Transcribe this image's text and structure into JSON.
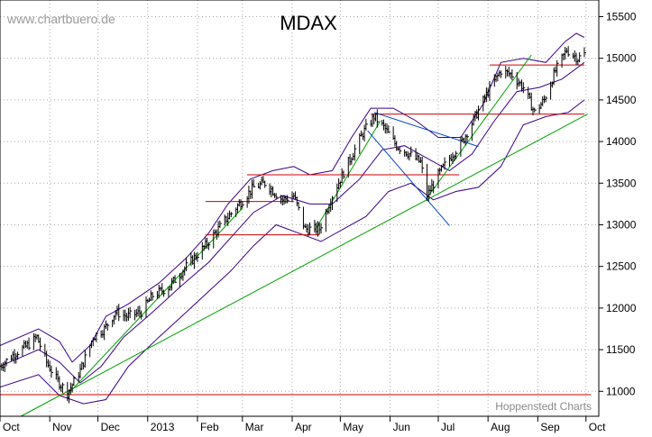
{
  "watermark": "www.chartbuero.de",
  "credit": "Hoppenstedt Charts",
  "chart_data": {
    "type": "candlestick",
    "title": "MDAX",
    "xlabel": "",
    "ylabel": "",
    "ylim": [
      10700,
      15700
    ],
    "y_axis_position": "right",
    "yticks": [
      11000,
      11500,
      12000,
      12500,
      13000,
      13500,
      14000,
      14500,
      15000,
      15500
    ],
    "month_labels": [
      "Oct",
      "Nov",
      "Dec",
      "2013",
      "Feb",
      "Mar",
      "Apr",
      "May",
      "Jun",
      "Jul",
      "Aug",
      "Sep",
      "Oct"
    ],
    "grid": true,
    "legend": "none",
    "price_path": [
      [
        "2012-10-01",
        11300
      ],
      [
        "2012-10-10",
        11450
      ],
      [
        "2012-10-18",
        11550
      ],
      [
        "2012-10-24",
        11650
      ],
      [
        "2012-10-30",
        11350
      ],
      [
        "2012-11-05",
        11150
      ],
      [
        "2012-11-12",
        10980
      ],
      [
        "2012-11-20",
        11250
      ],
      [
        "2012-11-28",
        11650
      ],
      [
        "2012-12-05",
        11750
      ],
      [
        "2012-12-12",
        11950
      ],
      [
        "2012-12-19",
        11900
      ],
      [
        "2012-12-28",
        11950
      ],
      [
        "2013-01-04",
        12150
      ],
      [
        "2013-01-14",
        12250
      ],
      [
        "2013-01-25",
        12500
      ],
      [
        "2013-02-06",
        12750
      ],
      [
        "2013-02-18",
        13050
      ],
      [
        "2013-02-27",
        13250
      ],
      [
        "2013-03-08",
        13450
      ],
      [
        "2013-03-15",
        13500
      ],
      [
        "2013-03-26",
        13300
      ],
      [
        "2013-04-02",
        13350
      ],
      [
        "2013-04-09",
        12950
      ],
      [
        "2013-04-18",
        12950
      ],
      [
        "2013-04-26",
        13350
      ],
      [
        "2013-05-06",
        13750
      ],
      [
        "2013-05-15",
        14100
      ],
      [
        "2013-05-22",
        14300
      ],
      [
        "2013-05-29",
        14150
      ],
      [
        "2013-06-05",
        13950
      ],
      [
        "2013-06-13",
        13850
      ],
      [
        "2013-06-20",
        13750
      ],
      [
        "2013-06-24",
        13350
      ],
      [
        "2013-07-01",
        13600
      ],
      [
        "2013-07-08",
        13800
      ],
      [
        "2013-07-16",
        14000
      ],
      [
        "2013-07-24",
        14300
      ],
      [
        "2013-08-01",
        14600
      ],
      [
        "2013-08-09",
        14850
      ],
      [
        "2013-08-16",
        14800
      ],
      [
        "2013-08-23",
        14650
      ],
      [
        "2013-08-30",
        14350
      ],
      [
        "2013-09-05",
        14500
      ],
      [
        "2013-09-12",
        14850
      ],
      [
        "2013-09-19",
        15100
      ],
      [
        "2013-09-26",
        15000
      ],
      [
        "2013-09-30",
        15050
      ]
    ],
    "bollinger_upper": [
      [
        "2012-10-01",
        11550
      ],
      [
        "2012-10-25",
        11750
      ],
      [
        "2012-11-07",
        11600
      ],
      [
        "2012-11-15",
        11350
      ],
      [
        "2012-11-26",
        11550
      ],
      [
        "2012-12-06",
        11900
      ],
      [
        "2012-12-20",
        12050
      ],
      [
        "2013-01-08",
        12300
      ],
      [
        "2013-01-25",
        12600
      ],
      [
        "2013-02-08",
        12900
      ],
      [
        "2013-02-20",
        13250
      ],
      [
        "2013-03-06",
        13550
      ],
      [
        "2013-03-20",
        13650
      ],
      [
        "2013-04-02",
        13700
      ],
      [
        "2013-04-12",
        13600
      ],
      [
        "2013-04-26",
        13650
      ],
      [
        "2013-05-08",
        14050
      ],
      [
        "2013-05-20",
        14400
      ],
      [
        "2013-06-03",
        14400
      ],
      [
        "2013-06-17",
        14250
      ],
      [
        "2013-07-01",
        14050
      ],
      [
        "2013-07-15",
        14050
      ],
      [
        "2013-07-29",
        14450
      ],
      [
        "2013-08-09",
        14950
      ],
      [
        "2013-08-23",
        15000
      ],
      [
        "2013-09-06",
        14950
      ],
      [
        "2013-09-18",
        15200
      ],
      [
        "2013-09-25",
        15300
      ],
      [
        "2013-09-30",
        15250
      ]
    ],
    "bollinger_middle": [
      [
        "2012-10-01",
        11300
      ],
      [
        "2012-10-25",
        11500
      ],
      [
        "2012-11-07",
        11350
      ],
      [
        "2012-11-20",
        11100
      ],
      [
        "2012-12-03",
        11300
      ],
      [
        "2012-12-17",
        11650
      ],
      [
        "2013-01-04",
        11950
      ],
      [
        "2013-01-21",
        12250
      ],
      [
        "2013-02-08",
        12550
      ],
      [
        "2013-02-22",
        12850
      ],
      [
        "2013-03-08",
        13150
      ],
      [
        "2013-03-26",
        13350
      ],
      [
        "2013-04-12",
        13250
      ],
      [
        "2013-04-26",
        13250
      ],
      [
        "2013-05-13",
        13550
      ],
      [
        "2013-05-27",
        13900
      ],
      [
        "2013-06-10",
        13950
      ],
      [
        "2013-06-24",
        13800
      ],
      [
        "2013-07-08",
        13650
      ],
      [
        "2013-07-22",
        13850
      ],
      [
        "2013-08-05",
        14250
      ],
      [
        "2013-08-19",
        14600
      ],
      [
        "2013-09-02",
        14650
      ],
      [
        "2013-09-16",
        14750
      ],
      [
        "2013-09-30",
        14950
      ]
    ],
    "bollinger_lower": [
      [
        "2012-10-01",
        11050
      ],
      [
        "2012-10-25",
        11200
      ],
      [
        "2012-11-07",
        10950
      ],
      [
        "2012-11-22",
        10850
      ],
      [
        "2012-12-06",
        10900
      ],
      [
        "2012-12-20",
        11300
      ],
      [
        "2013-01-08",
        11650
      ],
      [
        "2013-01-25",
        11950
      ],
      [
        "2013-02-08",
        12200
      ],
      [
        "2013-02-22",
        12450
      ],
      [
        "2013-03-08",
        12750
      ],
      [
        "2013-03-22",
        13000
      ],
      [
        "2013-04-05",
        12900
      ],
      [
        "2013-04-19",
        12800
      ],
      [
        "2013-05-03",
        12950
      ],
      [
        "2013-05-17",
        13100
      ],
      [
        "2013-05-31",
        13400
      ],
      [
        "2013-06-14",
        13500
      ],
      [
        "2013-06-28",
        13300
      ],
      [
        "2013-07-12",
        13400
      ],
      [
        "2013-07-26",
        13450
      ],
      [
        "2013-08-09",
        13700
      ],
      [
        "2013-08-23",
        14200
      ],
      [
        "2013-09-06",
        14300
      ],
      [
        "2013-09-20",
        14350
      ],
      [
        "2013-09-30",
        14500
      ]
    ],
    "horizontal_lines": [
      {
        "color": "#cc0000",
        "start": "2012-10-01",
        "end": "2013-10-04",
        "y": 10960
      },
      {
        "color": "#cc0000",
        "start": "2013-02-06",
        "end": "2013-04-18",
        "y": 12880
      },
      {
        "color": "#cc0000",
        "start": "2013-02-06",
        "end": "2013-04-02",
        "y": 13280
      },
      {
        "color": "#cc0000",
        "start": "2013-03-04",
        "end": "2013-07-14",
        "y": 13600
      },
      {
        "color": "#cc0000",
        "start": "2013-05-20",
        "end": "2013-09-30",
        "y": 14330
      },
      {
        "color": "#cc0000",
        "start": "2013-08-02",
        "end": "2013-09-30",
        "y": 14920
      }
    ],
    "trend_lines": [
      {
        "color": "#00a000",
        "x1": "2012-10-14",
        "y1": 10700,
        "x2": "2013-10-02",
        "y2": 14330
      },
      {
        "color": "#00a000",
        "x1": "2012-11-12",
        "y1": 10960,
        "x2": "2013-03-01",
        "y2": 13200
      },
      {
        "color": "#00a000",
        "x1": "2013-04-15",
        "y1": 12930,
        "x2": "2013-05-26",
        "y2": 14250
      },
      {
        "color": "#00a000",
        "x1": "2013-06-25",
        "y1": 13350,
        "x2": "2013-08-28",
        "y2": 15040
      },
      {
        "color": "#0044cc",
        "x1": "2013-05-22",
        "y1": 14350,
        "x2": "2013-07-26",
        "y2": 13940
      },
      {
        "color": "#0044cc",
        "x1": "2013-05-18",
        "y1": 14130,
        "x2": "2013-07-08",
        "y2": 12990
      }
    ],
    "colors": {
      "price": "#000000",
      "bollinger": "#3a008a",
      "support": "#cc0000",
      "uptrend": "#00a000",
      "pattern": "#0044cc",
      "grid": "#aaaaaa"
    }
  }
}
